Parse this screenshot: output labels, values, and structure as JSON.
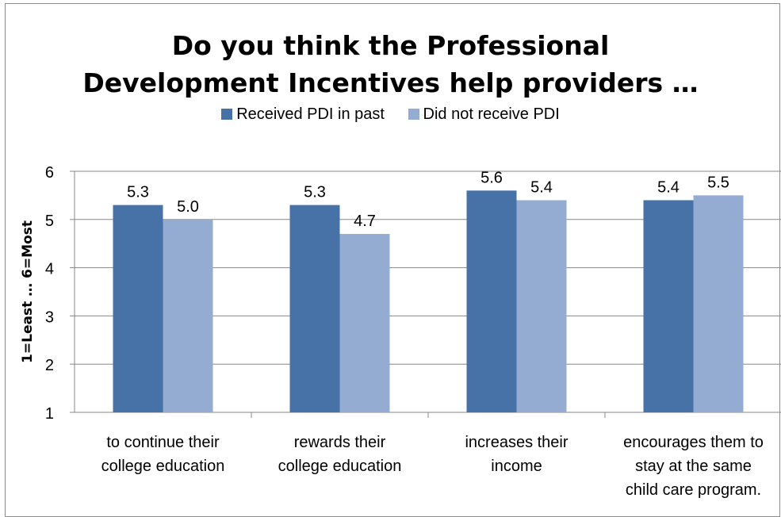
{
  "colors": {
    "received": "#4672a8",
    "not_received": "#94abd2",
    "grid": "#878787",
    "axis": "#878787"
  },
  "chart_data": {
    "type": "bar",
    "title": "Do you think the Professional\nDevelopment Incentives help providers …",
    "ylabel": "1=Least … 6=Most",
    "xlabel": "",
    "ylim": [
      1,
      6
    ],
    "yticks": [
      1,
      2,
      3,
      4,
      5,
      6
    ],
    "grid": true,
    "legend_position": "top",
    "categories": [
      [
        "to continue their",
        "college education"
      ],
      [
        "rewards their",
        "college education"
      ],
      [
        "increases their",
        "income"
      ],
      [
        "encourages them to",
        "stay at the same",
        "child care program."
      ]
    ],
    "series": [
      {
        "name": "Received PDI in past",
        "values": [
          5.3,
          5.3,
          5.6,
          5.4
        ],
        "labels": [
          "5.3",
          "5.3",
          "5.6",
          "5.4"
        ]
      },
      {
        "name": "Did not receive PDI",
        "values": [
          5.0,
          4.7,
          5.4,
          5.5
        ],
        "labels": [
          "5.0",
          "4.7",
          "5.4",
          "5.5"
        ]
      }
    ]
  }
}
